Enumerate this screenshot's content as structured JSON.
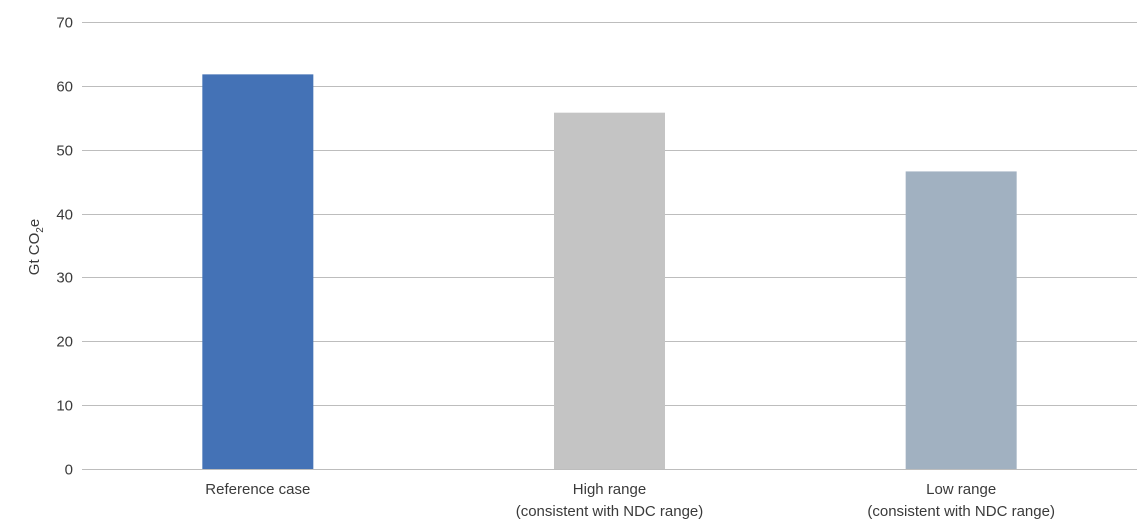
{
  "chart_data": {
    "type": "bar",
    "title": "",
    "xlabel": "",
    "ylabel": "Gt CO2e",
    "ylabel_parts": {
      "main": "Gt CO",
      "sub": "2",
      "tail": "e"
    },
    "ylim": [
      0,
      70
    ],
    "yticks": [
      0,
      10,
      20,
      30,
      40,
      50,
      60,
      70
    ],
    "grid": true,
    "categories": [
      [
        "Reference case"
      ],
      [
        "High range",
        "(consistent with NDC range)"
      ],
      [
        "Low range",
        "(consistent with NDC range)"
      ]
    ],
    "values": [
      61.8,
      55.8,
      46.6
    ],
    "colors": [
      "#4472b6",
      "#c4c4c4",
      "#a1b1c1"
    ]
  }
}
